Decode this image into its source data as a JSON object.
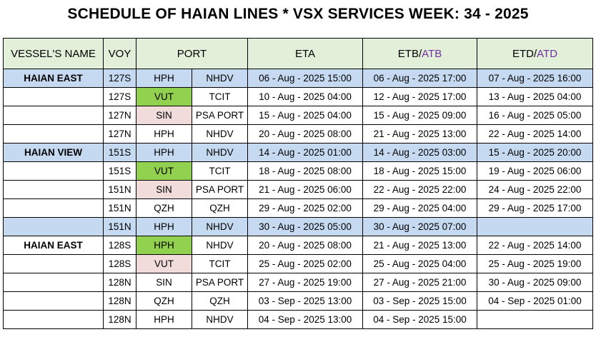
{
  "title": "SCHEDULE OF HAIAN LINES * VSX SERVICES WEEK: 34 - 2025",
  "headers": {
    "vessel": "VESSEL'S NAME",
    "voy": "VOY",
    "port": "PORT",
    "eta": "ETA",
    "etb_prefix": "ETB/",
    "etb_actual": "ATB",
    "etd_prefix": "ETD/",
    "etd_actual": "ATD"
  },
  "colors": {
    "header_bg": "#e2efd9",
    "voyage_start_bg": "#c5d9f1",
    "green_highlight": "#92d050",
    "pink_highlight": "#f2dcdb",
    "actual_text": "#7030a0"
  },
  "rows": [
    {
      "vessel": "HAIAN EAST",
      "voy": "127S",
      "port": "HPH",
      "terminal": "NHDV",
      "eta": "06 - Aug - 2025  15:00",
      "etb": "06 - Aug - 2025  17:00",
      "etd": "07 - Aug - 2025  16:00"
    },
    {
      "vessel": "",
      "voy": "127S",
      "port": "VUT",
      "terminal": "TCIT",
      "eta": "10 - Aug - 2025  04:00",
      "etb": "12 - Aug - 2025  17:00",
      "etd": "13 - Aug - 2025  04:00"
    },
    {
      "vessel": "",
      "voy": "127N",
      "port": "SIN",
      "terminal": "PSA PORT",
      "eta": "15 - Aug - 2025  04:00",
      "etb": "15 - Aug - 2025  09:00",
      "etd": "16 - Aug - 2025  05:00"
    },
    {
      "vessel": "",
      "voy": "127N",
      "port": "HPH",
      "terminal": "NHDV",
      "eta": "20 - Aug - 2025  08:00",
      "etb": "21 - Aug - 2025  13:00",
      "etd": "22 - Aug - 2025  14:00"
    },
    {
      "vessel": "HAIAN VIEW",
      "voy": "151S",
      "port": "HPH",
      "terminal": "NHDV",
      "eta": "14 - Aug - 2025  01:00",
      "etb": "14 - Aug - 2025  03:00",
      "etd": "15 - Aug - 2025  20:00"
    },
    {
      "vessel": "",
      "voy": "151S",
      "port": "VUT",
      "terminal": "TCIT",
      "eta": "18 - Aug - 2025  08:00",
      "etb": "18 - Aug - 2025  15:00",
      "etd": "19 - Aug - 2025  06:00"
    },
    {
      "vessel": "",
      "voy": "151N",
      "port": "SIN",
      "terminal": "PSA PORT",
      "eta": "21 - Aug - 2025  06:00",
      "etb": "22 - Aug - 2025  22:00",
      "etd": "24 - Aug - 2025  22:00"
    },
    {
      "vessel": "",
      "voy": "151N",
      "port": "QZH",
      "terminal": "QZH",
      "eta": "29 - Aug - 2025  02:00",
      "etb": "29 - Aug - 2025  04:00",
      "etd": "29 - Aug - 2025  17:00"
    },
    {
      "vessel": "",
      "voy": "151N",
      "port": "HPH",
      "terminal": "NHDV",
      "eta": "30 - Aug - 2025  05:00",
      "etb": "30 - Aug - 2025  07:00",
      "etd": ""
    },
    {
      "vessel": "HAIAN EAST",
      "voy": "128S",
      "port": "HPH",
      "terminal": "NHDV",
      "eta": "20 - Aug - 2025  08:00",
      "etb": "21 - Aug - 2025  13:00",
      "etd": "22 - Aug - 2025  14:00"
    },
    {
      "vessel": "",
      "voy": "128S",
      "port": "VUT",
      "terminal": "TCIT",
      "eta": "25 - Aug - 2025  02:00",
      "etb": "25 - Aug - 2025  04:00",
      "etd": "25 - Aug - 2025  19:00"
    },
    {
      "vessel": "",
      "voy": "128N",
      "port": "SIN",
      "terminal": "PSA PORT",
      "eta": "27 - Aug - 2025  19:00",
      "etb": "27 - Aug - 2025  21:00",
      "etd": "30 - Aug - 2025  09:00"
    },
    {
      "vessel": "",
      "voy": "128N",
      "port": "QZH",
      "terminal": "QZH",
      "eta": "03 - Sep - 2025  13:00",
      "etb": "03 - Sep - 2025  15:00",
      "etd": "04 - Sep - 2025  01:00"
    },
    {
      "vessel": "",
      "voy": "128N",
      "port": "HPH",
      "terminal": "NHDV",
      "eta": "04 - Sep - 2025  13:00",
      "etb": "04 - Sep - 2025  15:00",
      "etd": ""
    }
  ]
}
